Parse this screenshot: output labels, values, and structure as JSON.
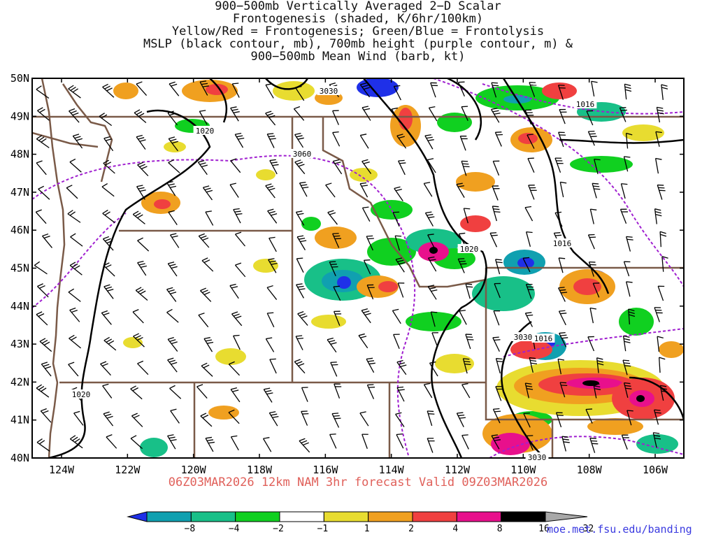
{
  "title_lines": [
    "900−500mb Vertically Averaged 2−D Scalar",
    "Frontogenesis (shaded, K/6hr/100km)",
    "Yellow/Red = Frontogenesis;  Green/Blue = Frontolysis",
    "MSLP (black contour, mb), 700mb height (purple contour, m) &",
    "900−500mb Mean Wind (barb, kt)"
  ],
  "lat_labels": [
    "50N",
    "49N",
    "48N",
    "47N",
    "46N",
    "45N",
    "44N",
    "43N",
    "42N",
    "41N",
    "40N"
  ],
  "lon_labels": [
    "124W",
    "122W",
    "120W",
    "118W",
    "116W",
    "114W",
    "112W",
    "110W",
    "108W",
    "106W"
  ],
  "contour_labels": [
    {
      "text": "3030",
      "kind": "height"
    },
    {
      "text": "1020",
      "kind": "mslp"
    },
    {
      "text": "3060",
      "kind": "height"
    },
    {
      "text": "1016",
      "kind": "mslp"
    },
    {
      "text": "1020",
      "kind": "mslp"
    },
    {
      "text": "1016",
      "kind": "mslp"
    },
    {
      "text": "3030",
      "kind": "height"
    },
    {
      "text": "1016",
      "kind": "mslp"
    },
    {
      "text": "1020",
      "kind": "mslp"
    },
    {
      "text": "3030",
      "kind": "height"
    }
  ],
  "colorbar": {
    "labels": [
      "−8",
      "−4",
      "−2",
      "−1",
      "1",
      "2",
      "4",
      "8",
      "16",
      "32"
    ],
    "colors": [
      "#1f30e8",
      "#10a0b0",
      "#18c088",
      "#10d020",
      "#ffffff",
      "#e8dc30",
      "#f0a020",
      "#f04040",
      "#e8108c",
      "#000000",
      "#a8a8a8"
    ]
  },
  "valid_text": "06Z03MAR2026 12km NAM 3hr forecast Valid 09Z03MAR2026",
  "credit": "moe.met.fsu.edu/banding",
  "colors": {
    "mslp": "#000000",
    "height": "#a020d0",
    "borders": "#7a5a48",
    "grid": "#000000"
  }
}
